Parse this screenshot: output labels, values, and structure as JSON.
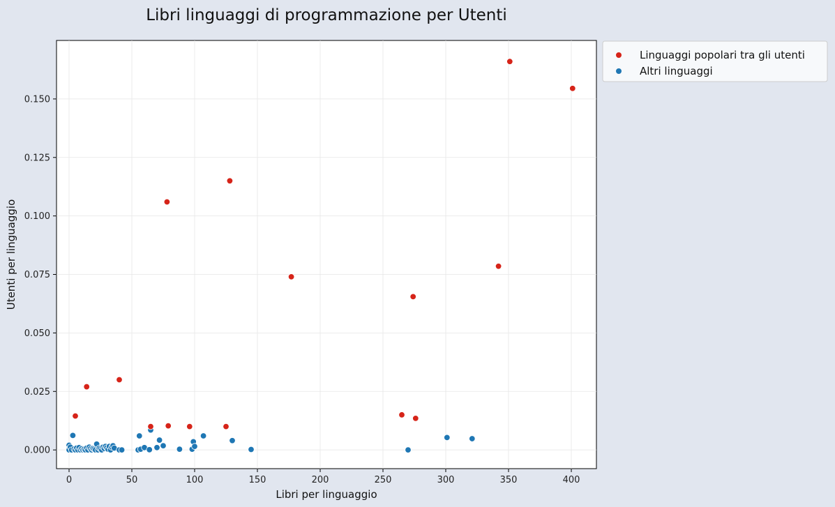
{
  "chart_data": {
    "type": "scatter",
    "title": "Libri linguaggi di programmazione per Utenti",
    "xlabel": "Libri per linguaggio",
    "ylabel": "Utenti per linguaggio",
    "xlim": [
      -10,
      420
    ],
    "ylim": [
      -0.008,
      0.175
    ],
    "x_ticks": [
      0,
      50,
      100,
      150,
      200,
      250,
      300,
      350,
      400
    ],
    "y_ticks": [
      0.0,
      0.025,
      0.05,
      0.075,
      0.1,
      0.125,
      0.15
    ],
    "y_tick_labels": [
      "0.000",
      "0.025",
      "0.050",
      "0.075",
      "0.100",
      "0.125",
      "0.150"
    ],
    "grid": true,
    "legend_position": "outside-top-right",
    "series": [
      {
        "name": "Linguaggi popolari tra gli utenti",
        "color": "#d62419",
        "points": [
          [
            5,
            0.0145
          ],
          [
            14,
            0.027
          ],
          [
            40,
            0.03
          ],
          [
            65,
            0.01
          ],
          [
            78,
            0.106
          ],
          [
            79,
            0.0103
          ],
          [
            96,
            0.01
          ],
          [
            125,
            0.01
          ],
          [
            128,
            0.115
          ],
          [
            177,
            0.074
          ],
          [
            265,
            0.015
          ],
          [
            274,
            0.0655
          ],
          [
            276,
            0.0135
          ],
          [
            342,
            0.0785
          ],
          [
            351,
            0.166
          ],
          [
            401,
            0.1545
          ]
        ]
      },
      {
        "name": "Altri linguaggi",
        "color": "#1f77b4",
        "points": [
          [
            0,
            0.002
          ],
          [
            0,
            0.0005
          ],
          [
            0,
            0.0
          ],
          [
            1,
            0.0012
          ],
          [
            2,
            0.0
          ],
          [
            3,
            0.0062
          ],
          [
            4,
            0.0004
          ],
          [
            5,
            0.0
          ],
          [
            6,
            0.0008
          ],
          [
            7,
            0.0
          ],
          [
            8,
            0.001
          ],
          [
            9,
            0.0
          ],
          [
            10,
            0.0005
          ],
          [
            11,
            0.0
          ],
          [
            12,
            0.0003
          ],
          [
            13,
            0.0
          ],
          [
            14,
            0.0008
          ],
          [
            15,
            0.0
          ],
          [
            16,
            0.0012
          ],
          [
            17,
            0.0005
          ],
          [
            18,
            0.0
          ],
          [
            19,
            0.0006
          ],
          [
            20,
            0.0003
          ],
          [
            21,
            0.0
          ],
          [
            22,
            0.0025
          ],
          [
            23,
            0.0
          ],
          [
            24,
            0.0008
          ],
          [
            25,
            0.0004
          ],
          [
            26,
            0.0
          ],
          [
            27,
            0.0012
          ],
          [
            28,
            0.0006
          ],
          [
            29,
            0.0015
          ],
          [
            30,
            0.0009
          ],
          [
            31,
            0.0003
          ],
          [
            32,
            0.0015
          ],
          [
            33,
            0.0
          ],
          [
            34,
            0.0012
          ],
          [
            35,
            0.0018
          ],
          [
            36,
            0.0008
          ],
          [
            40,
            0.0
          ],
          [
            42,
            0.0
          ],
          [
            55,
            0.0
          ],
          [
            56,
            0.006
          ],
          [
            57,
            0.0003
          ],
          [
            60,
            0.001
          ],
          [
            64,
            0.0001
          ],
          [
            65,
            0.0085
          ],
          [
            70,
            0.001
          ],
          [
            72,
            0.0042
          ],
          [
            75,
            0.0018
          ],
          [
            88,
            0.0003
          ],
          [
            98,
            0.0003
          ],
          [
            99,
            0.0035
          ],
          [
            100,
            0.0015
          ],
          [
            107,
            0.006
          ],
          [
            130,
            0.004
          ],
          [
            145,
            0.0002
          ],
          [
            270,
            0.0
          ],
          [
            301,
            0.0053
          ],
          [
            321,
            0.0048
          ]
        ]
      }
    ]
  }
}
